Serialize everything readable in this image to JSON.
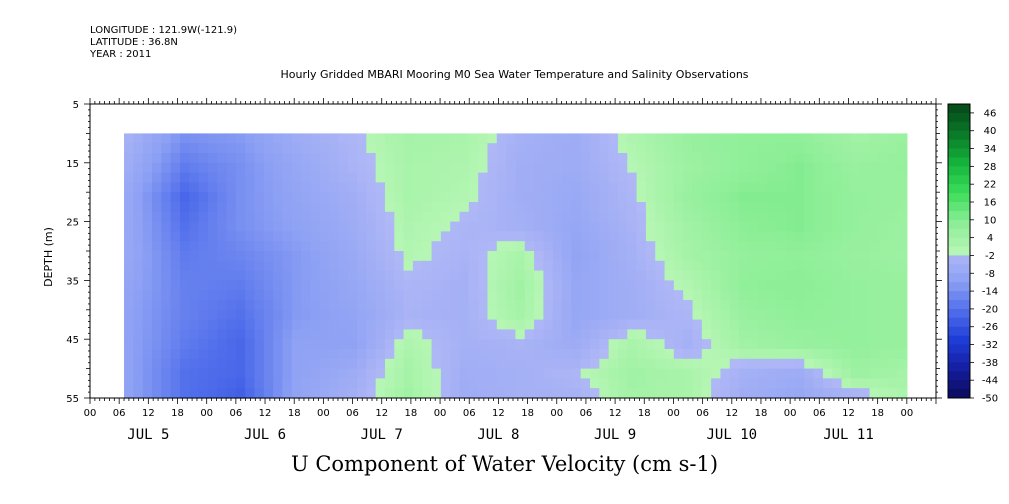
{
  "header": {
    "longitude": "LONGITUDE : 121.9W(-121.9)",
    "latitude": "LATITUDE : 36.8N",
    "year": "YEAR : 2011"
  },
  "chart_data": {
    "type": "heatmap",
    "title": "Hourly Gridded MBARI Mooring M0 Sea Water Temperature and Salinity Observations",
    "xlabel": "U Component of Water Velocity (cm s-1)",
    "ylabel": "DEPTH (m)",
    "ylim": [
      55,
      5
    ],
    "y_ticks": [
      5,
      15,
      25,
      35,
      45,
      55
    ],
    "x_hour_tick_labels": [
      "00",
      "06",
      "12",
      "18",
      "00",
      "06",
      "12",
      "18",
      "00",
      "06",
      "12",
      "18",
      "00",
      "06",
      "12",
      "18",
      "00",
      "06",
      "12",
      "18",
      "00",
      "06",
      "12",
      "18",
      "00",
      "06",
      "12",
      "18",
      "00"
    ],
    "x_day_labels": [
      "JUL  5",
      "JUL  6",
      "JUL  7",
      "JUL  8",
      "JUL  9",
      "JUL 10",
      "JUL 11"
    ],
    "data_range": {
      "start": "2011-07-05 07:00",
      "end": "2011-07-12 00:00",
      "depth_top": 10,
      "depth_bottom": 55
    },
    "colorbar": {
      "labels": [
        "46",
        "40",
        "34",
        "28",
        "22",
        "16",
        "10",
        "4",
        "-2",
        "-8",
        "-14",
        "-20",
        "-26",
        "-32",
        "-38",
        "-44",
        "-50"
      ],
      "min": -50,
      "max": 49,
      "step": 3
    },
    "depths": [
      10,
      15,
      20,
      25,
      30,
      35,
      40,
      45,
      50,
      55
    ],
    "times": [
      "Jul 5 06h",
      "Jul 5 18h",
      "Jul 6 06h",
      "Jul 6 18h",
      "Jul 7 06h",
      "Jul 7 18h",
      "Jul 8 06h",
      "Jul 8 18h",
      "Jul 9 06h",
      "Jul 9 18h",
      "Jul 10 06h",
      "Jul 10 18h",
      "Jul 11 06h",
      "Jul 11 18h",
      "Jul 12 00h"
    ],
    "values": [
      [
        -4,
        -14,
        -12,
        -6,
        -2,
        3,
        2,
        -4,
        -6,
        1,
        6,
        8,
        8,
        4,
        6
      ],
      [
        -6,
        -18,
        -14,
        -8,
        -3,
        2,
        1,
        -5,
        -6,
        -1,
        5,
        8,
        10,
        6,
        7
      ],
      [
        -8,
        -22,
        -14,
        -9,
        -5,
        2,
        0,
        -5,
        -7,
        -2,
        6,
        10,
        10,
        7,
        6
      ],
      [
        -8,
        -20,
        -14,
        -10,
        -6,
        1,
        -2,
        -4,
        -8,
        -3,
        4,
        9,
        10,
        7,
        5
      ],
      [
        -8,
        -18,
        -16,
        -12,
        -7,
        0,
        -3,
        2,
        -9,
        -4,
        3,
        7,
        8,
        6,
        5
      ],
      [
        -9,
        -17,
        -18,
        -12,
        -8,
        -2,
        -4,
        4,
        -8,
        -5,
        0,
        8,
        9,
        7,
        6
      ],
      [
        -10,
        -17,
        -20,
        -12,
        -9,
        -3,
        -4,
        3,
        -8,
        -5,
        -2,
        6,
        8,
        7,
        6
      ],
      [
        -10,
        -18,
        -22,
        -10,
        -10,
        1,
        -4,
        -3,
        -6,
        2,
        -4,
        4,
        6,
        7,
        6
      ],
      [
        -10,
        -20,
        -22,
        -10,
        -6,
        3,
        -5,
        -4,
        -2,
        4,
        2,
        -4,
        -6,
        5,
        3
      ],
      [
        -10,
        -20,
        -24,
        -9,
        -4,
        4,
        -6,
        -4,
        -4,
        3,
        2,
        -6,
        -8,
        -6,
        2
      ]
    ]
  }
}
